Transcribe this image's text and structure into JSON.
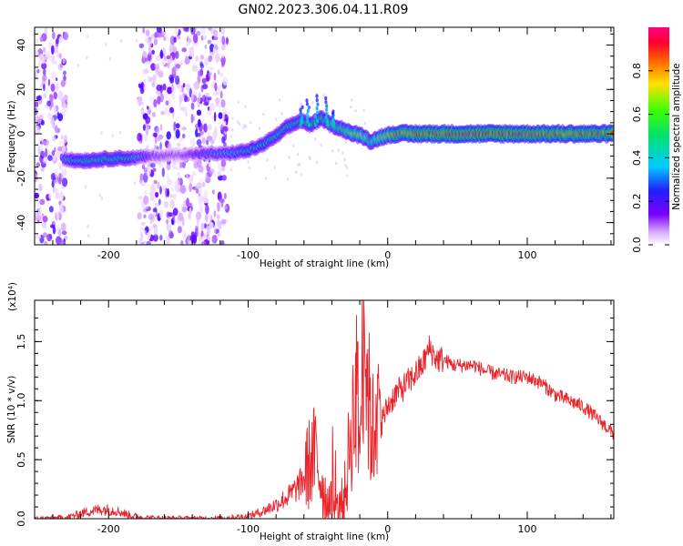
{
  "title": "GN02.2023.306.04.11.R09",
  "chart_data": [
    {
      "type": "heatmap",
      "xlabel": "Height of straight line (km)",
      "ylabel": "Frequency (Hz)",
      "xlim": [
        -253,
        162
      ],
      "ylim": [
        -50,
        48
      ],
      "x_ticks": [
        -200,
        -100,
        0,
        100
      ],
      "y_ticks": [
        40,
        20,
        0,
        -20,
        -40
      ],
      "colorbar": {
        "label": "Normalized spectral amplitude",
        "range": [
          0,
          1
        ],
        "ticks": [
          "0.0",
          "0.2",
          "0.4",
          "0.6",
          "0.8"
        ],
        "tick_values": [
          0,
          0.2,
          0.4,
          0.6,
          0.8
        ]
      },
      "ridge": [
        {
          "x": -232,
          "f": -11,
          "amp": 0.35
        },
        {
          "x": -225,
          "f": -12,
          "amp": 0.45
        },
        {
          "x": -215,
          "f": -12,
          "amp": 0.5
        },
        {
          "x": -205,
          "f": -11.5,
          "amp": 0.5
        },
        {
          "x": -195,
          "f": -11,
          "amp": 0.5
        },
        {
          "x": -185,
          "f": -11,
          "amp": 0.45
        },
        {
          "x": -177,
          "f": -10.5,
          "amp": 0.35
        },
        {
          "x": -168,
          "f": -10,
          "amp": 0.2
        },
        {
          "x": -150,
          "f": -9.5,
          "amp": 0.15
        },
        {
          "x": -130,
          "f": -9,
          "amp": 0.3
        },
        {
          "x": -120,
          "f": -9,
          "amp": 0.35
        },
        {
          "x": -110,
          "f": -8.5,
          "amp": 0.4
        },
        {
          "x": -100,
          "f": -7.5,
          "amp": 0.45
        },
        {
          "x": -90,
          "f": -5,
          "amp": 0.45
        },
        {
          "x": -82,
          "f": -2,
          "amp": 0.5
        },
        {
          "x": -72,
          "f": 3,
          "amp": 0.5
        },
        {
          "x": -62,
          "f": 6,
          "amp": 0.5
        },
        {
          "x": -55,
          "f": 4,
          "amp": 0.55
        },
        {
          "x": -48,
          "f": 7,
          "amp": 0.55
        },
        {
          "x": -40,
          "f": 4,
          "amp": 0.6
        },
        {
          "x": -32,
          "f": 2,
          "amp": 0.6
        },
        {
          "x": -25,
          "f": 0,
          "amp": 0.75
        },
        {
          "x": -18,
          "f": -1,
          "amp": 0.7
        },
        {
          "x": -12,
          "f": -3.5,
          "amp": 0.6
        },
        {
          "x": -5,
          "f": -1.5,
          "amp": 0.7
        },
        {
          "x": 5,
          "f": 0,
          "amp": 0.85
        },
        {
          "x": 20,
          "f": 0,
          "amp": 0.9
        },
        {
          "x": 50,
          "f": 0,
          "amp": 0.95
        },
        {
          "x": 80,
          "f": 0,
          "amp": 0.95
        },
        {
          "x": 110,
          "f": 0,
          "amp": 0.9
        },
        {
          "x": 140,
          "f": 0,
          "amp": 0.9
        },
        {
          "x": 162,
          "f": 0,
          "amp": 0.9
        }
      ],
      "noise_bands": [
        [
          -253,
          -230
        ],
        [
          -178,
          -115
        ]
      ]
    },
    {
      "type": "line",
      "xlabel": "Height of straight line (km)",
      "ylabel": "SNR (10 * v/v)",
      "y_multiplier": "(x10⁴)",
      "xlim": [
        -253,
        162
      ],
      "ylim": [
        0,
        1.85
      ],
      "x_ticks": [
        -200,
        -100,
        0,
        100
      ],
      "y_ticks": [
        0.0,
        0.5,
        1.0,
        1.5
      ],
      "y_tick_labels": [
        "0.0",
        "0.5",
        "1.0",
        "1.5"
      ],
      "series": [
        {
          "color": "#e8232a",
          "x": [
            -253,
            -230,
            -215,
            -205,
            -195,
            -185,
            -175,
            -160,
            -140,
            -120,
            -100,
            -90,
            -80,
            -70,
            -62,
            -57,
            -52,
            -48,
            -45,
            -40,
            -35,
            -30,
            -27,
            -22,
            -20,
            -17,
            -15,
            -13,
            -10,
            -8,
            -5,
            0,
            5,
            10,
            18,
            25,
            30,
            35,
            40,
            47,
            55,
            62,
            70,
            80,
            90,
            100,
            110,
            120,
            130,
            140,
            150,
            162
          ],
          "y": [
            0.0,
            0.01,
            0.06,
            0.08,
            0.07,
            0.03,
            0.01,
            0.005,
            0.003,
            0.005,
            0.02,
            0.06,
            0.12,
            0.2,
            0.3,
            0.45,
            0.55,
            0.35,
            0.2,
            0.1,
            0.05,
            0.25,
            0.7,
            1.1,
            0.6,
            1.8,
            1.2,
            0.9,
            0.7,
            1.0,
            0.8,
            0.95,
            1.05,
            1.1,
            1.2,
            1.3,
            1.45,
            1.35,
            1.35,
            1.3,
            1.3,
            1.3,
            1.25,
            1.22,
            1.2,
            1.2,
            1.15,
            1.05,
            1.0,
            0.95,
            0.85,
            0.72
          ]
        }
      ]
    }
  ],
  "colors": {
    "line": "#e8232a",
    "heat_low": "#6f00ff",
    "heat_high": "#ff0040"
  }
}
